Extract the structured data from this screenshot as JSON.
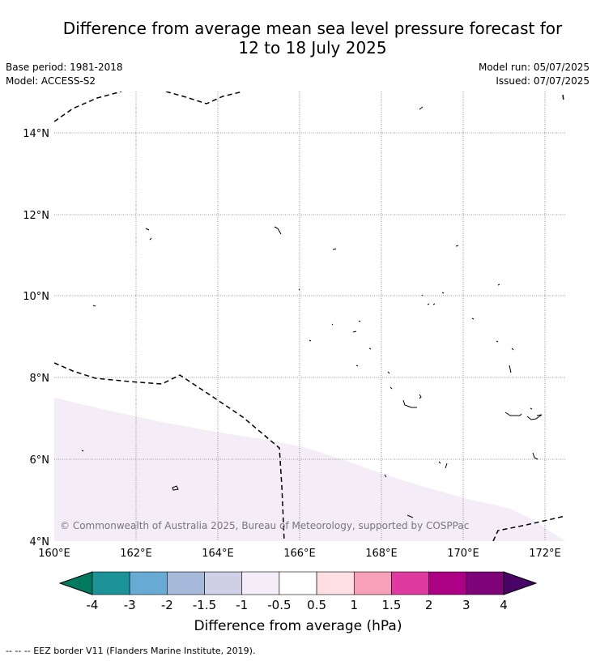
{
  "title": {
    "line1": "Difference from average mean sea level pressure forecast for",
    "line2": "12 to 18 July 2025"
  },
  "meta": {
    "base_period": "Base period: 1981-2018",
    "model": "Model: ACCESS-S2",
    "model_run": "Model run: 05/07/2025",
    "issued": "Issued: 07/07/2025"
  },
  "map": {
    "lon_labels": [
      "160°E",
      "162°E",
      "164°E",
      "166°E",
      "168°E",
      "170°E",
      "172°E"
    ],
    "lat_labels": [
      "14°N",
      "12°N",
      "10°N",
      "8°N",
      "6°N",
      "4°N"
    ],
    "lon_range": [
      160,
      172.5
    ],
    "lat_range": [
      4,
      15
    ],
    "grid": true,
    "shaded_anomaly_class": "-1 to -0.5",
    "copyright": "© Commonwealth of Australia 2025, Bureau of Meteorology, supported by COSPPac"
  },
  "colorbar": {
    "labels": [
      "-4",
      "-3",
      "-2",
      "-1.5",
      "-1",
      "-0.5",
      "0.5",
      "1",
      "1.5",
      "2",
      "3",
      "4"
    ],
    "colors": {
      "below_min": "#007a5e",
      "bins": [
        "#1b9399",
        "#67abd4",
        "#a6b9db",
        "#cfd0e6",
        "#f4ecf6",
        "#ffffff",
        "#ffdfe2",
        "#f89fba",
        "#df3aa0",
        "#ac0085",
        "#7d0479"
      ],
      "above_max": "#480467"
    },
    "title": "Difference from average (hPa)"
  },
  "footer": {
    "legend": "--  --  -- EEZ border V11 (Flanders Marine Institute, 2019)."
  }
}
